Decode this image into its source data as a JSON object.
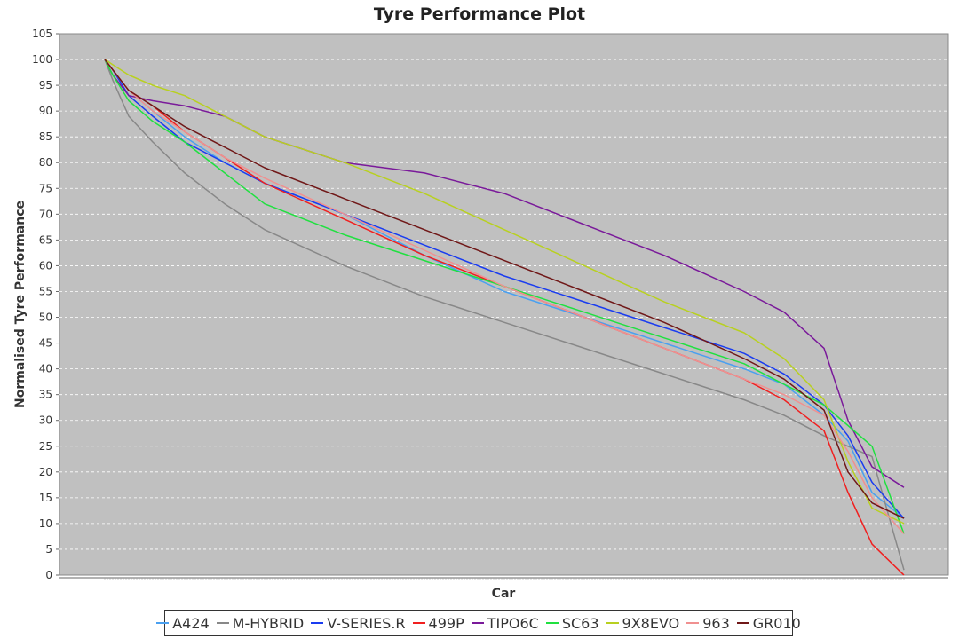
{
  "chart_data": {
    "type": "line",
    "title": "Tyre Performance Plot",
    "xlabel": "Car",
    "ylabel": "Normalised Tyre Performance",
    "ylim": [
      0,
      105
    ],
    "yticks": [
      0,
      5,
      10,
      15,
      20,
      25,
      30,
      35,
      40,
      45,
      50,
      55,
      60,
      65,
      70,
      75,
      80,
      85,
      90,
      95,
      100,
      105
    ],
    "x_tick_labels": "none",
    "grid": true,
    "legend_position": "bottom",
    "background": "#c0c0c0",
    "x": [
      0,
      0.01,
      0.03,
      0.06,
      0.1,
      0.15,
      0.2,
      0.3,
      0.4,
      0.5,
      0.6,
      0.7,
      0.8,
      0.85,
      0.9,
      0.93,
      0.96,
      1.0
    ],
    "series": [
      {
        "name": "A424",
        "color": "#4aa0f0",
        "values": [
          100,
          98,
          94,
          90,
          85,
          80,
          76,
          70,
          62,
          55,
          50,
          45,
          40,
          37,
          31,
          26,
          16,
          11
        ]
      },
      {
        "name": "M-HYBRID",
        "color": "#888888",
        "values": [
          100,
          96,
          89,
          84,
          78,
          72,
          67,
          60,
          54,
          49,
          44,
          39,
          34,
          31,
          27,
          25,
          23,
          1
        ]
      },
      {
        "name": "V-SERIES.R",
        "color": "#1a3cf0",
        "values": [
          100,
          98,
          93,
          89,
          84,
          80,
          76,
          70,
          64,
          58,
          53,
          48,
          43,
          39,
          33,
          27,
          18,
          11
        ]
      },
      {
        "name": "499P",
        "color": "#f02020",
        "values": [
          100,
          98,
          94,
          91,
          86,
          81,
          76,
          69,
          62,
          56,
          50,
          44,
          38,
          34,
          28,
          16,
          6,
          0
        ]
      },
      {
        "name": "TIPO6C",
        "color": "#7a1a9a",
        "values": [
          100,
          97,
          93,
          92,
          91,
          89,
          85,
          80,
          78,
          74,
          68,
          62,
          55,
          51,
          44,
          30,
          21,
          17
        ]
      },
      {
        "name": "SC63",
        "color": "#20e040",
        "values": [
          100,
          97,
          92,
          88,
          84,
          78,
          72,
          66,
          61,
          56,
          51,
          46,
          41,
          37,
          33,
          29,
          25,
          8
        ]
      },
      {
        "name": "9X8EVO",
        "color": "#b8d020",
        "values": [
          100,
          99,
          97,
          95,
          93,
          89,
          85,
          80,
          74,
          67,
          60,
          53,
          47,
          42,
          34,
          22,
          13,
          10
        ]
      },
      {
        "name": "963",
        "color": "#f09090",
        "values": [
          100,
          98,
          94,
          90,
          86,
          81,
          77,
          70,
          63,
          56,
          50,
          44,
          38,
          35,
          31,
          24,
          15,
          8
        ]
      },
      {
        "name": "GR010",
        "color": "#701818",
        "values": [
          100,
          98,
          94,
          91,
          87,
          83,
          79,
          73,
          67,
          61,
          55,
          49,
          42,
          38,
          32,
          20,
          14,
          11
        ]
      }
    ]
  }
}
